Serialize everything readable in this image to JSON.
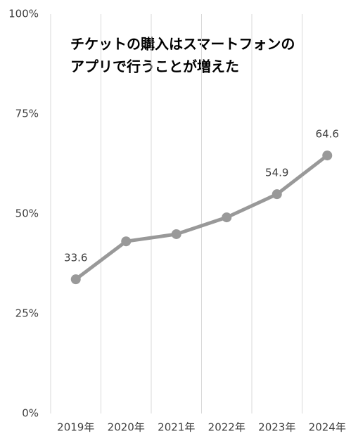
{
  "chart_data": {
    "type": "line",
    "title": [
      "チケットの購入はスマートフォンの",
      "アプリで行うことが増えた"
    ],
    "categories": [
      "2019年",
      "2020年",
      "2021年",
      "2022年",
      "2023年",
      "2024年"
    ],
    "values": [
      33.6,
      43.1,
      44.9,
      49.1,
      54.9,
      64.6
    ],
    "value_labels": [
      "33.6",
      null,
      null,
      null,
      "54.9",
      "64.6"
    ],
    "color": "#999999",
    "ylim": [
      0,
      100
    ],
    "yticks": [
      {
        "value": 0,
        "label": "0%"
      },
      {
        "value": 25,
        "label": "25%"
      },
      {
        "value": 50,
        "label": "50%"
      },
      {
        "value": 75,
        "label": "75%"
      },
      {
        "value": 100,
        "label": "100%"
      }
    ]
  }
}
